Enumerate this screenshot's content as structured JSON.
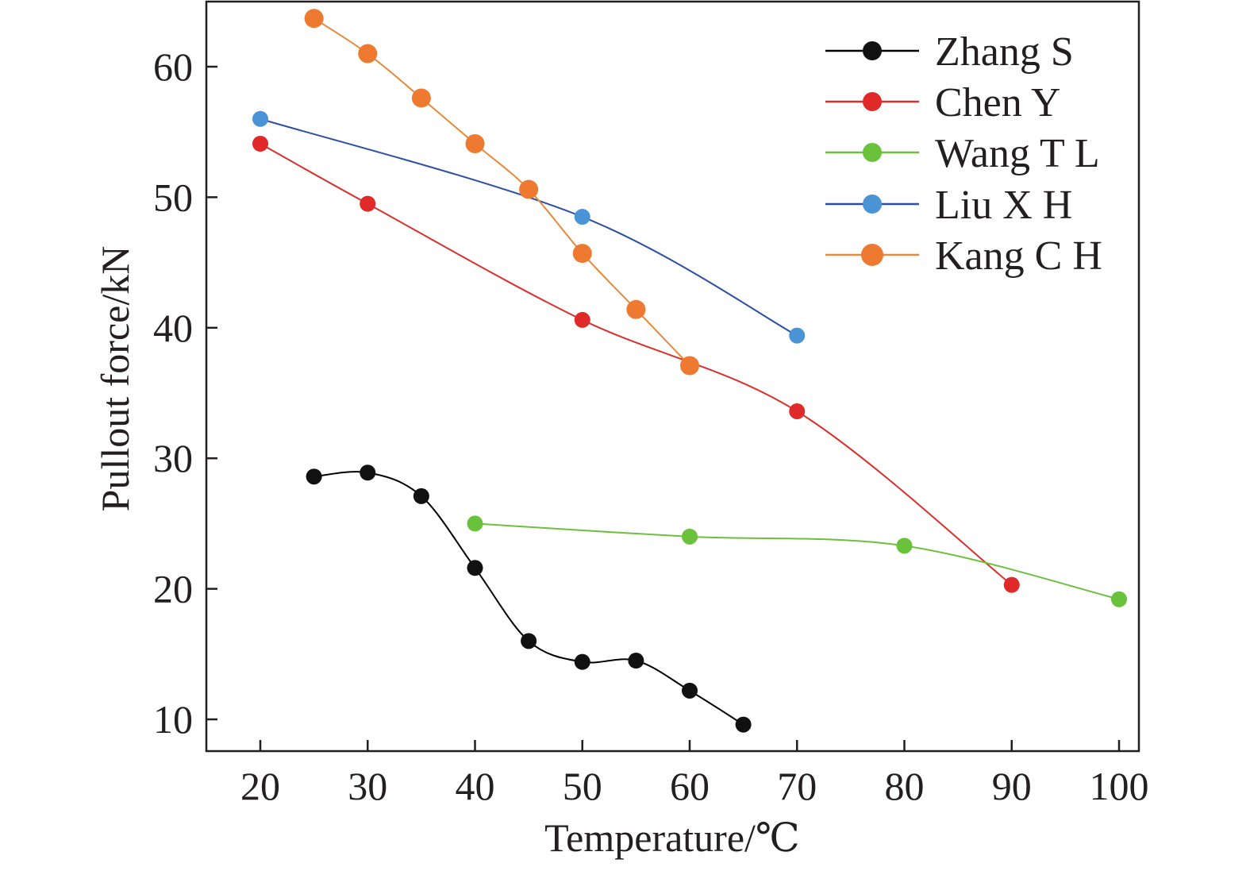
{
  "chart_data": {
    "type": "line",
    "title": "",
    "xlabel": "Temperature/℃",
    "ylabel": "Pullout force/kN",
    "xlim": [
      15,
      102
    ],
    "ylim": [
      7.5,
      65
    ],
    "xticks": [
      20,
      30,
      40,
      50,
      60,
      70,
      80,
      90,
      100
    ],
    "yticks": [
      10,
      20,
      30,
      40,
      50,
      60
    ],
    "grid": false,
    "legend_position": "top-right",
    "series": [
      {
        "name": "Zhang S",
        "color": "#000000",
        "marker_color": "#111111",
        "x": [
          25,
          30,
          35,
          40,
          45,
          50,
          55,
          60,
          65
        ],
        "y": [
          28.6,
          28.9,
          27.1,
          21.6,
          16.0,
          14.4,
          14.5,
          12.2,
          9.6
        ]
      },
      {
        "name": "Chen Y",
        "color": "#d9312e",
        "marker_color": "#e02a2a",
        "x": [
          20,
          30,
          50,
          70,
          90
        ],
        "y": [
          54.1,
          49.5,
          40.6,
          33.6,
          20.3
        ]
      },
      {
        "name": "Wang T L",
        "color": "#6dbf3d",
        "marker_color": "#6ac13b",
        "x": [
          40,
          60,
          80,
          100
        ],
        "y": [
          25.0,
          24.0,
          23.3,
          19.2
        ]
      },
      {
        "name": "Liu X H",
        "color": "#2c4fa3",
        "marker_color": "#4a93d4",
        "x": [
          20,
          50,
          70
        ],
        "y": [
          56.0,
          48.5,
          39.4
        ]
      },
      {
        "name": "Kang C H",
        "color": "#e58a3a",
        "marker_color": "#ed7a30",
        "x": [
          25,
          30,
          35,
          40,
          45,
          50,
          55,
          60
        ],
        "y": [
          63.7,
          61.0,
          57.6,
          54.1,
          50.6,
          45.7,
          41.4,
          37.1
        ]
      }
    ]
  }
}
